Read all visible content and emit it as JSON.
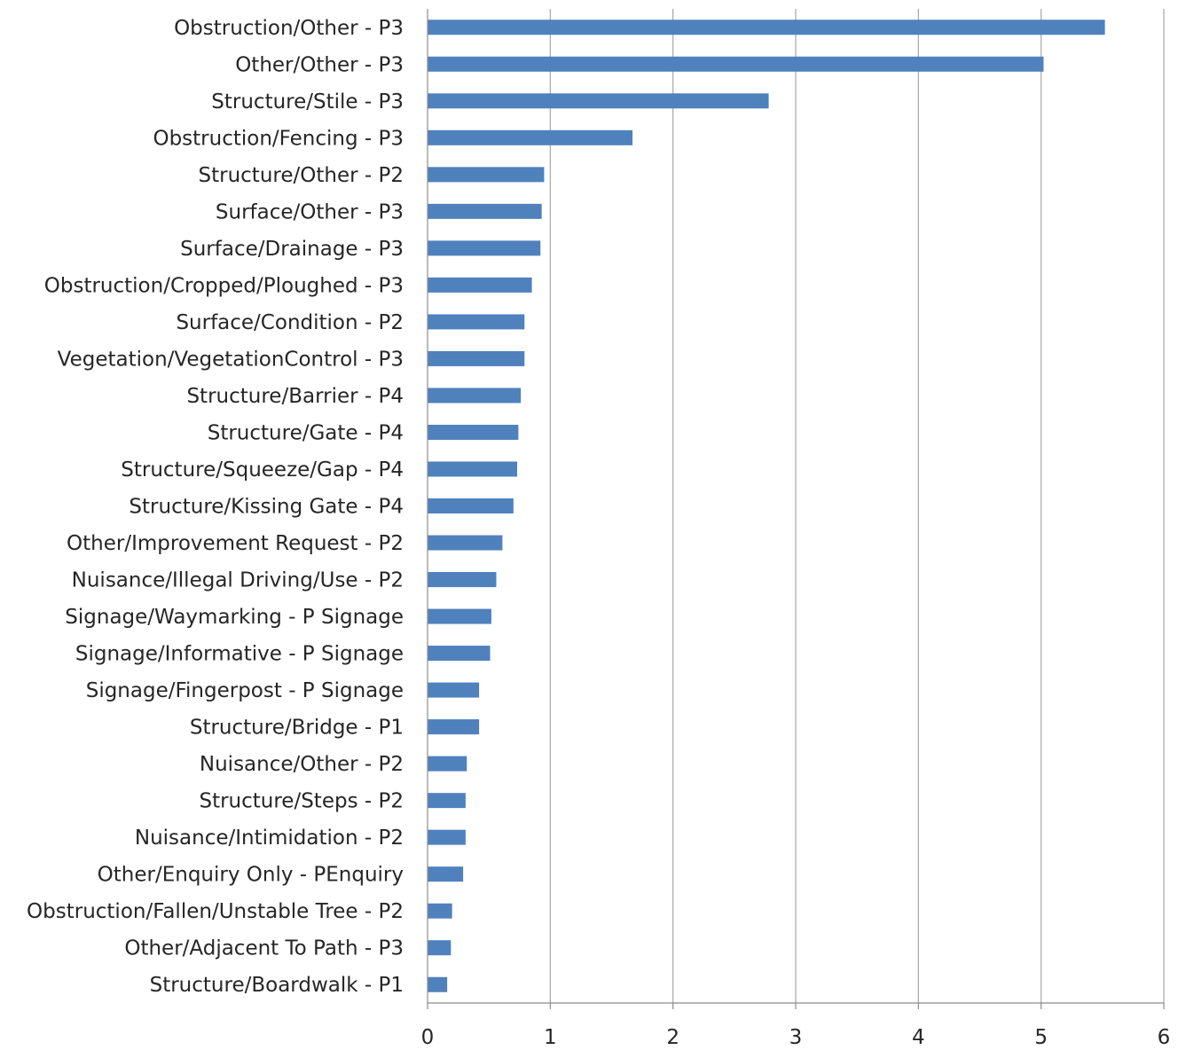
{
  "chart_data": {
    "type": "bar",
    "orientation": "horizontal",
    "title": "",
    "xlabel": "",
    "ylabel": "",
    "xlim": [
      0,
      6
    ],
    "xticks": [
      0,
      1,
      2,
      3,
      4,
      5,
      6
    ],
    "grid": true,
    "legend": "none",
    "bar_color": "#4f81bd",
    "categories": [
      "Obstruction/Other - P3",
      "Other/Other - P3",
      "Structure/Stile - P3",
      "Obstruction/Fencing - P3",
      "Structure/Other - P2",
      "Surface/Other - P3",
      "Surface/Drainage - P3",
      "Obstruction/Cropped/Ploughed - P3",
      "Surface/Condition - P2",
      "Vegetation/VegetationControl - P3",
      "Structure/Barrier - P4",
      "Structure/Gate - P4",
      "Structure/Squeeze/Gap - P4",
      "Structure/Kissing Gate - P4",
      "Other/Improvement Request - P2",
      "Nuisance/Illegal Driving/Use - P2",
      "Signage/Waymarking - P Signage",
      "Signage/Informative - P Signage",
      "Signage/Fingerpost - P Signage",
      "Structure/Bridge - P1",
      "Nuisance/Other - P2",
      "Structure/Steps - P2",
      "Nuisance/Intimidation - P2",
      "Other/Enquiry Only - PEnquiry",
      "Obstruction/Fallen/Unstable Tree - P2",
      "Other/Adjacent To Path - P3",
      "Structure/Boardwalk - P1"
    ],
    "values": [
      5.52,
      5.02,
      2.78,
      1.67,
      0.95,
      0.93,
      0.92,
      0.85,
      0.79,
      0.79,
      0.76,
      0.74,
      0.73,
      0.7,
      0.61,
      0.56,
      0.52,
      0.51,
      0.42,
      0.42,
      0.32,
      0.31,
      0.31,
      0.29,
      0.2,
      0.19,
      0.16
    ]
  }
}
